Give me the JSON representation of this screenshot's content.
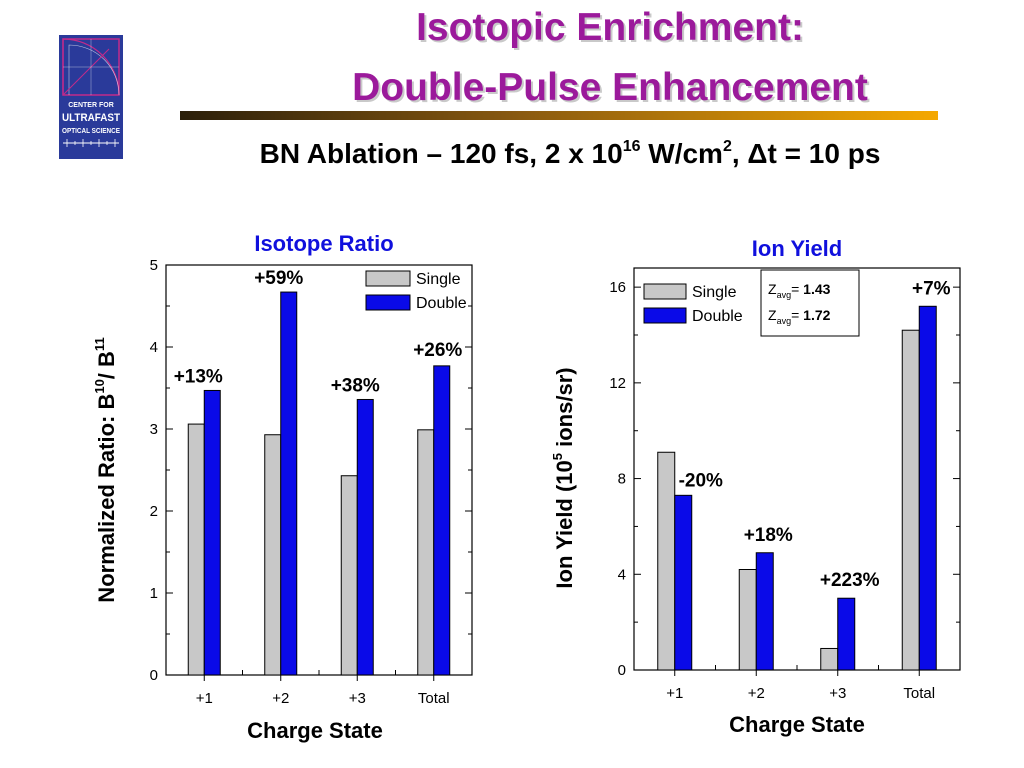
{
  "slide": {
    "title_line1": "Isotopic Enrichment:",
    "title_line2": "Double-Pulse Enhancement",
    "subtitle": {
      "main": "BN Ablation – 120 fs, 2 x 10",
      "exp1": "16",
      "mid": " W/cm",
      "exp2": "2",
      "delta_part": ", Δt = 10 ps"
    },
    "logo": {
      "line1": "CENTER FOR",
      "line2": "ULTRAFAST",
      "line3": "OPTICAL SCIENCE",
      "colors": {
        "background": "#2a3a9a",
        "frame": "#c22a8a",
        "text": "#ffffff"
      }
    }
  },
  "colors": {
    "title": "#9b1a9b",
    "chart_title": "#1010dd",
    "single_bar": "#c8c8c8",
    "double_bar": "#0a0ae8"
  },
  "chart_data": [
    {
      "type": "bar",
      "title": "Isotope Ratio",
      "xlabel": "Charge State",
      "ylabel_prefix": "Normalized Ratio:  B",
      "ylabel_sup1": "10",
      "ylabel_mid": "/ B",
      "ylabel_sup2": "11",
      "ylim": [
        0,
        5
      ],
      "yticks": [
        "0",
        "1",
        "2",
        "3",
        "4",
        "5"
      ],
      "categories": [
        "+1",
        "+2",
        "+3",
        "Total"
      ],
      "series": [
        {
          "name": "Single",
          "values": [
            3.06,
            2.93,
            2.43,
            2.99
          ]
        },
        {
          "name": "Double",
          "values": [
            3.47,
            4.67,
            3.36,
            3.77
          ]
        }
      ],
      "annotations": [
        "+13%",
        "+59%",
        "+38%",
        "+26%"
      ],
      "legend_position": "top-right",
      "grid": false
    },
    {
      "type": "bar",
      "title": "Ion Yield",
      "xlabel": "Charge State",
      "ylabel_prefix": "Ion Yield (10",
      "ylabel_sup": "5",
      "ylabel_suffix": " ions/sr)",
      "ylim": [
        0,
        16.8
      ],
      "yticks": [
        "0",
        "4",
        "8",
        "12",
        "16"
      ],
      "categories": [
        "+1",
        "+2",
        "+3",
        "Total"
      ],
      "series": [
        {
          "name": "Single",
          "values": [
            9.1,
            4.2,
            0.9,
            14.2
          ]
        },
        {
          "name": "Double",
          "values": [
            7.3,
            4.9,
            3.0,
            15.2
          ]
        }
      ],
      "annotations": [
        "-20%",
        "+18%",
        "+223%",
        "+7%"
      ],
      "legend_position": "top-left",
      "grid": false,
      "zavg_box": {
        "symbol": "Z",
        "sub": "avg",
        "eq": "= ",
        "single": "1.43",
        "double": "1.72"
      }
    }
  ]
}
